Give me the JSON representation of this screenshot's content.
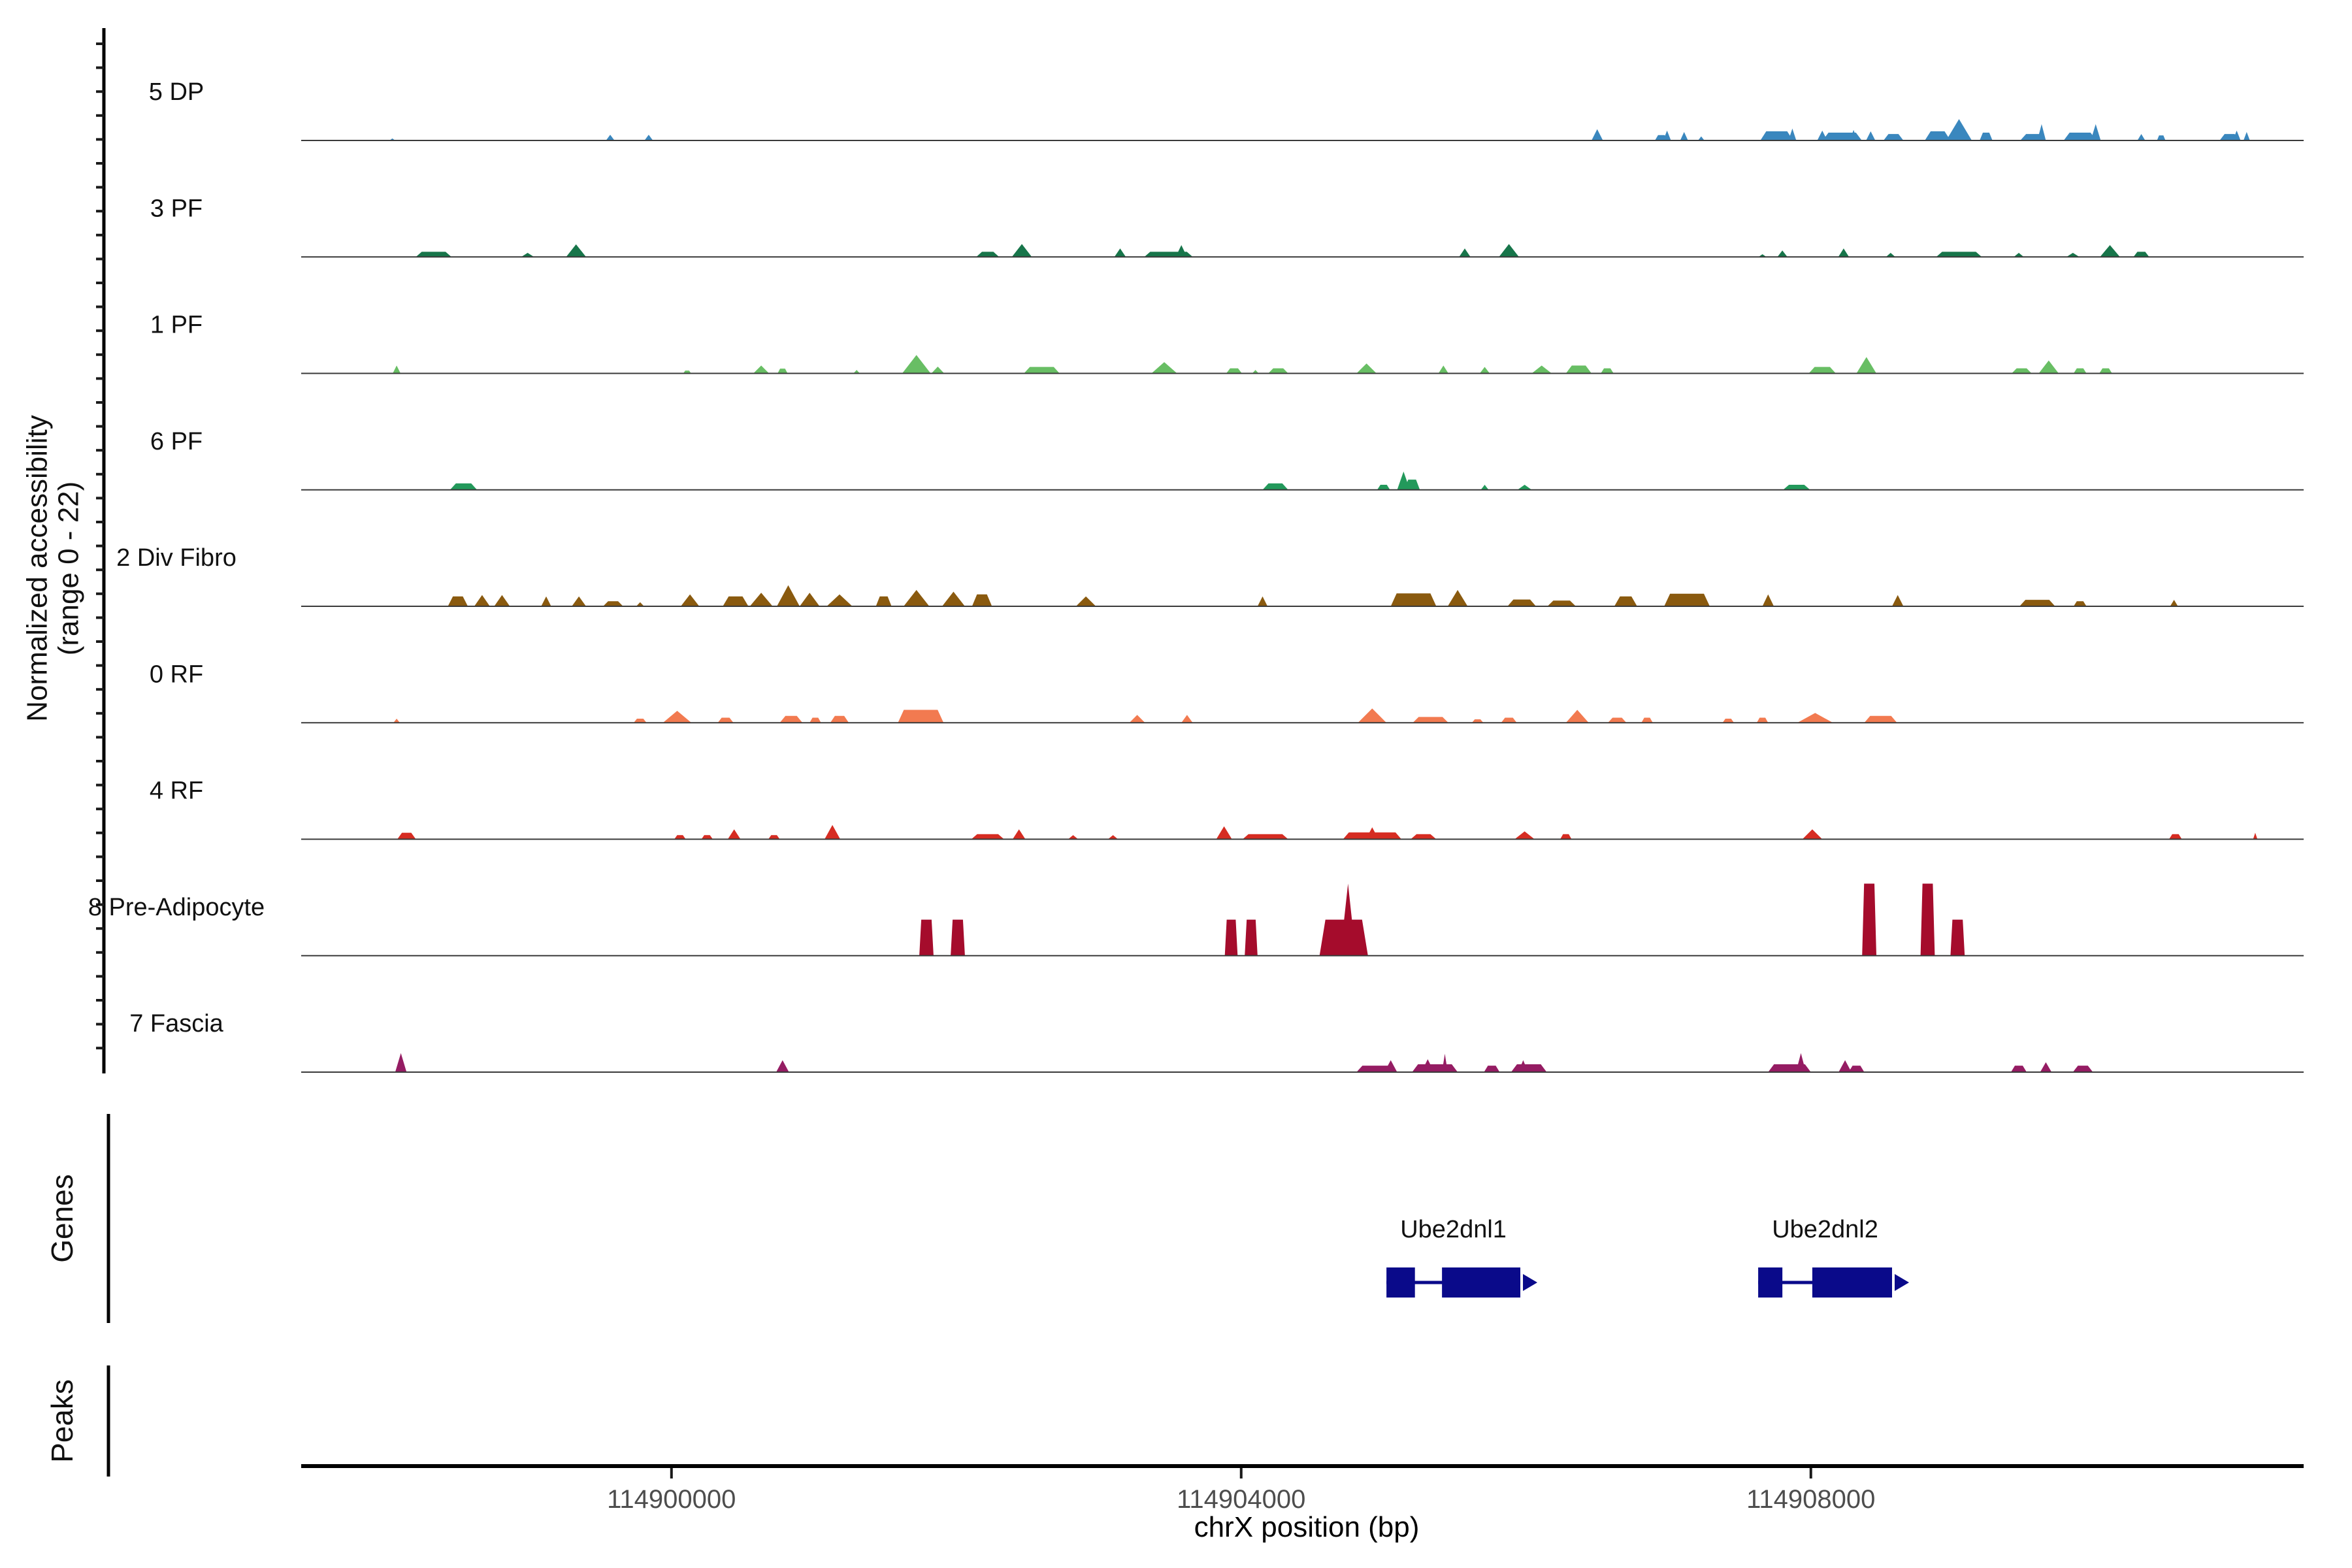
{
  "chart_data": {
    "type": "area",
    "description": "Genome browser style normalized chromatin accessibility tracks",
    "xlabel": "chrX position (bp)",
    "ylabel_line1": "Normalized accessibility",
    "ylabel_line2": "(range 0 - 22)",
    "x_domain_bp": [
      114897400,
      114911460
    ],
    "x_ticks": [
      {
        "bp": 114900000,
        "label": "114900000"
      },
      {
        "bp": 114904000,
        "label": "114904000"
      },
      {
        "bp": 114908000,
        "label": "114908000"
      }
    ],
    "y_range": [
      0,
      22
    ],
    "grid": false,
    "tracks": [
      {
        "id": "5-dp",
        "label": "5 DP",
        "color": "#3A87BE",
        "bumps": [
          [
            114898040,
            40,
            0.6,
            1
          ],
          [
            114899570,
            60,
            1.7,
            1
          ],
          [
            114899840,
            60,
            1.7,
            1
          ],
          [
            114906500,
            80,
            3.3,
            1
          ],
          [
            114906950,
            90,
            1.6,
            0
          ],
          [
            114906990,
            55,
            2.9,
            1
          ],
          [
            114907110,
            55,
            2.5,
            1
          ],
          [
            114907230,
            45,
            1.2,
            1
          ],
          [
            114907760,
            230,
            2.7,
            0
          ],
          [
            114907870,
            55,
            3.5,
            1
          ],
          [
            114908080,
            70,
            2.9,
            1
          ],
          [
            114908220,
            275,
            2.3,
            0
          ],
          [
            114908300,
            55,
            3.1,
            1
          ],
          [
            114908420,
            65,
            2.7,
            1
          ],
          [
            114908580,
            140,
            1.9,
            0
          ],
          [
            114908890,
            180,
            2.7,
            0
          ],
          [
            114909040,
            180,
            6.3,
            1
          ],
          [
            114909230,
            90,
            2.3,
            0
          ],
          [
            114909560,
            180,
            1.9,
            0
          ],
          [
            114909620,
            60,
            4.8,
            1
          ],
          [
            114909890,
            230,
            2.3,
            0
          ],
          [
            114910000,
            70,
            4.8,
            1
          ],
          [
            114910320,
            55,
            1.9,
            1
          ],
          [
            114910460,
            60,
            1.5,
            0
          ],
          [
            114910940,
            140,
            1.9,
            0
          ],
          [
            114910990,
            55,
            2.9,
            1
          ],
          [
            114911060,
            45,
            2.5,
            1
          ]
        ]
      },
      {
        "id": "3-pf",
        "label": "3 PF",
        "color": "#17754A",
        "bumps": [
          [
            114898330,
            250,
            1.5,
            0
          ],
          [
            114898990,
            90,
            1.2,
            1
          ],
          [
            114899330,
            140,
            3.7,
            1
          ],
          [
            114902220,
            160,
            1.5,
            0
          ],
          [
            114902460,
            140,
            3.8,
            1
          ],
          [
            114903150,
            80,
            2.5,
            1
          ],
          [
            114903490,
            340,
            1.5,
            0
          ],
          [
            114903580,
            80,
            3.5,
            1
          ],
          [
            114905570,
            80,
            2.5,
            1
          ],
          [
            114905880,
            140,
            3.8,
            1
          ],
          [
            114907660,
            55,
            0.8,
            1
          ],
          [
            114907800,
            70,
            1.9,
            1
          ],
          [
            114908230,
            75,
            2.5,
            1
          ],
          [
            114908560,
            65,
            1.2,
            1
          ],
          [
            114909040,
            320,
            1.5,
            0
          ],
          [
            114909460,
            70,
            1.2,
            1
          ],
          [
            114909840,
            90,
            1.2,
            1
          ],
          [
            114910100,
            140,
            3.5,
            1
          ],
          [
            114910320,
            110,
            1.5,
            0
          ]
        ]
      },
      {
        "id": "1-pf",
        "label": "1 PF",
        "color": "#68BE64",
        "bumps": [
          [
            114898070,
            55,
            2.3,
            1
          ],
          [
            114900110,
            55,
            0.8,
            0
          ],
          [
            114900630,
            110,
            2.3,
            1
          ],
          [
            114900780,
            70,
            1.4,
            0
          ],
          [
            114901300,
            45,
            1.0,
            1
          ],
          [
            114901720,
            200,
            5.4,
            1
          ],
          [
            114901870,
            90,
            2.0,
            1
          ],
          [
            114902600,
            250,
            1.9,
            0
          ],
          [
            114903460,
            180,
            3.3,
            1
          ],
          [
            114903950,
            110,
            1.5,
            0
          ],
          [
            114904100,
            45,
            1.0,
            1
          ],
          [
            114904260,
            140,
            1.5,
            0
          ],
          [
            114904880,
            140,
            2.9,
            1
          ],
          [
            114905420,
            70,
            2.3,
            1
          ],
          [
            114905710,
            70,
            1.9,
            1
          ],
          [
            114906110,
            140,
            2.3,
            1
          ],
          [
            114906370,
            180,
            2.3,
            0
          ],
          [
            114906570,
            90,
            1.5,
            0
          ],
          [
            114908080,
            190,
            1.9,
            0
          ],
          [
            114908390,
            140,
            4.8,
            1
          ],
          [
            114909480,
            140,
            1.5,
            0
          ],
          [
            114909670,
            140,
            3.8,
            1
          ],
          [
            114909890,
            90,
            1.5,
            0
          ],
          [
            114910070,
            90,
            1.5,
            0
          ]
        ]
      },
      {
        "id": "6-pf",
        "label": "6 PF",
        "color": "#23995B",
        "bumps": [
          [
            114898540,
            190,
            1.9,
            0
          ],
          [
            114904240,
            180,
            1.9,
            0
          ],
          [
            114905000,
            90,
            1.5,
            0
          ],
          [
            114905140,
            90,
            5.4,
            1
          ],
          [
            114905200,
            110,
            3.0,
            0
          ],
          [
            114905710,
            55,
            1.5,
            1
          ],
          [
            114905990,
            100,
            1.5,
            1
          ],
          [
            114907900,
            190,
            1.5,
            0
          ]
        ]
      },
      {
        "id": "2-div-fibro",
        "label": "2 Div Fibro",
        "color": "#8A5A0F",
        "bumps": [
          [
            114898500,
            140,
            2.9,
            0
          ],
          [
            114898670,
            110,
            3.3,
            1
          ],
          [
            114898810,
            110,
            3.3,
            1
          ],
          [
            114899120,
            70,
            2.9,
            1
          ],
          [
            114899350,
            100,
            2.9,
            1
          ],
          [
            114899590,
            140,
            1.5,
            0
          ],
          [
            114899780,
            55,
            1.2,
            1
          ],
          [
            114900130,
            130,
            3.5,
            1
          ],
          [
            114900450,
            180,
            2.9,
            0
          ],
          [
            114900630,
            160,
            4.0,
            1
          ],
          [
            114900820,
            160,
            6.2,
            1
          ],
          [
            114900970,
            140,
            4.0,
            1
          ],
          [
            114901180,
            180,
            3.5,
            1
          ],
          [
            114901490,
            110,
            2.9,
            0
          ],
          [
            114901720,
            180,
            4.8,
            1
          ],
          [
            114901980,
            160,
            4.3,
            1
          ],
          [
            114902180,
            140,
            3.5,
            0
          ],
          [
            114902910,
            140,
            2.9,
            1
          ],
          [
            114904150,
            70,
            2.9,
            1
          ],
          [
            114905210,
            320,
            3.8,
            0
          ],
          [
            114905520,
            140,
            4.8,
            1
          ],
          [
            114905970,
            200,
            2.0,
            0
          ],
          [
            114906250,
            200,
            1.7,
            0
          ],
          [
            114906700,
            160,
            2.9,
            0
          ],
          [
            114907130,
            320,
            3.7,
            0
          ],
          [
            114907700,
            80,
            3.5,
            1
          ],
          [
            114908610,
            80,
            3.3,
            1
          ],
          [
            114909590,
            250,
            1.9,
            0
          ],
          [
            114909890,
            90,
            1.5,
            0
          ],
          [
            114910550,
            55,
            1.9,
            1
          ]
        ]
      },
      {
        "id": "0-rf",
        "label": "0 RF",
        "color": "#F27A50",
        "bumps": [
          [
            114898070,
            45,
            1.2,
            1
          ],
          [
            114899780,
            90,
            1.2,
            0
          ],
          [
            114900040,
            200,
            3.5,
            1
          ],
          [
            114900380,
            110,
            1.5,
            0
          ],
          [
            114900840,
            160,
            2.0,
            0
          ],
          [
            114901010,
            80,
            1.5,
            0
          ],
          [
            114901180,
            130,
            2.0,
            0
          ],
          [
            114901750,
            320,
            3.8,
            0
          ],
          [
            114903270,
            110,
            2.3,
            1
          ],
          [
            114903620,
            80,
            2.3,
            1
          ],
          [
            114904920,
            200,
            4.2,
            1
          ],
          [
            114905330,
            250,
            1.7,
            0
          ],
          [
            114905660,
            80,
            1.0,
            0
          ],
          [
            114905880,
            110,
            1.5,
            0
          ],
          [
            114906360,
            160,
            3.8,
            1
          ],
          [
            114906640,
            130,
            1.5,
            0
          ],
          [
            114906850,
            80,
            1.5,
            0
          ],
          [
            114907420,
            80,
            1.2,
            0
          ],
          [
            114907660,
            80,
            1.5,
            0
          ],
          [
            114908030,
            250,
            2.9,
            1
          ],
          [
            114908490,
            230,
            2.0,
            0
          ]
        ]
      },
      {
        "id": "4-rf",
        "label": "4 RF",
        "color": "#D62C22",
        "bumps": [
          [
            114898140,
            130,
            1.9,
            0
          ],
          [
            114900060,
            80,
            1.2,
            0
          ],
          [
            114900250,
            80,
            1.2,
            0
          ],
          [
            114900440,
            90,
            2.9,
            1
          ],
          [
            114900720,
            80,
            1.2,
            0
          ],
          [
            114901130,
            110,
            4.2,
            1
          ],
          [
            114902220,
            230,
            1.5,
            0
          ],
          [
            114902440,
            90,
            2.9,
            1
          ],
          [
            114902820,
            70,
            1.2,
            1
          ],
          [
            114903100,
            70,
            1.2,
            1
          ],
          [
            114903880,
            110,
            3.8,
            1
          ],
          [
            114904170,
            320,
            1.5,
            0
          ],
          [
            114904920,
            410,
            2.0,
            0
          ],
          [
            114904920,
            90,
            3.5,
            1
          ],
          [
            114905280,
            180,
            1.5,
            0
          ],
          [
            114905990,
            140,
            2.3,
            1
          ],
          [
            114906280,
            80,
            1.5,
            0
          ],
          [
            114908010,
            140,
            2.9,
            1
          ],
          [
            114910560,
            90,
            1.5,
            0
          ],
          [
            114911120,
            30,
            1.9,
            1
          ]
        ]
      },
      {
        "id": "8-pre-adipocyte",
        "label": "8 Pre-Adipocyte",
        "color": "#A50C2C",
        "bumps": [
          [
            114901790,
            100,
            10.6,
            2
          ],
          [
            114902010,
            100,
            10.6,
            2
          ],
          [
            114903930,
            90,
            10.6,
            2
          ],
          [
            114904070,
            90,
            10.6,
            2
          ],
          [
            114904720,
            340,
            10.6,
            0
          ],
          [
            114904750,
            110,
            21.2,
            1
          ],
          [
            114908410,
            100,
            21.2,
            2
          ],
          [
            114908820,
            100,
            21.2,
            2
          ],
          [
            114909030,
            100,
            10.6,
            2
          ]
        ]
      },
      {
        "id": "7-fascia",
        "label": "7 Fascia",
        "color": "#951C63",
        "bumps": [
          [
            114898100,
            80,
            5.6,
            1
          ],
          [
            114900780,
            90,
            3.5,
            1
          ],
          [
            114904950,
            280,
            1.9,
            0
          ],
          [
            114905050,
            90,
            3.5,
            1
          ],
          [
            114905360,
            320,
            2.3,
            0
          ],
          [
            114905310,
            90,
            3.8,
            1
          ],
          [
            114905430,
            40,
            5.4,
            1
          ],
          [
            114905760,
            110,
            1.9,
            0
          ],
          [
            114906020,
            250,
            2.3,
            0
          ],
          [
            114905980,
            70,
            3.5,
            1
          ],
          [
            114907850,
            300,
            2.3,
            0
          ],
          [
            114907930,
            70,
            5.6,
            1
          ],
          [
            114908240,
            90,
            3.5,
            1
          ],
          [
            114908320,
            110,
            1.9,
            0
          ],
          [
            114909460,
            110,
            1.9,
            0
          ],
          [
            114909650,
            80,
            2.9,
            1
          ],
          [
            114909910,
            140,
            1.9,
            0
          ]
        ]
      }
    ],
    "genes": {
      "label": "Genes",
      "color": "#0A0A8A",
      "items": [
        {
          "name": "Ube2dnl1",
          "strand": "+",
          "span_bp": [
            114905020,
            114905960
          ],
          "exons_bp": [
            [
              114905020,
              114905220
            ],
            [
              114905410,
              114905960
            ]
          ]
        },
        {
          "name": "Ube2dnl2",
          "strand": "+",
          "span_bp": [
            114907630,
            114908570
          ],
          "exons_bp": [
            [
              114907630,
              114907800
            ],
            [
              114908010,
              114908570
            ]
          ]
        }
      ]
    },
    "peaks_row": {
      "label": "Peaks",
      "items": []
    }
  }
}
